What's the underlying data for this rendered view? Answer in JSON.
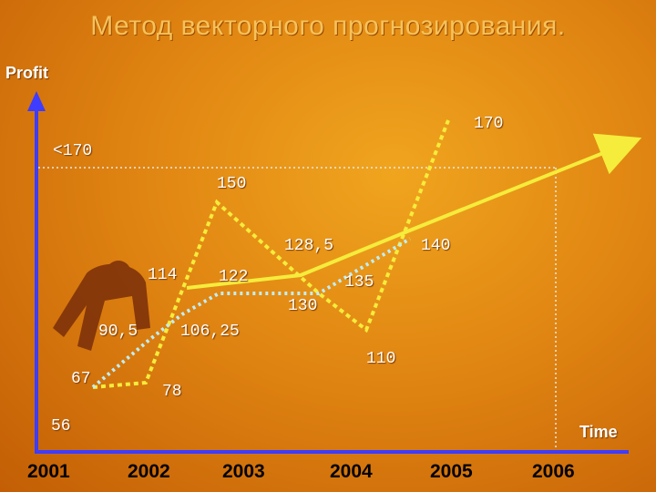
{
  "title": "Метод векторного прогнозирования.",
  "chart_data": {
    "type": "line",
    "ylabel": "Profit",
    "xlabel": "Time",
    "y_axis_label_value": "56",
    "threshold_label": "<170",
    "categories": [
      "2001",
      "2002",
      "2003",
      "2004",
      "2005",
      "2006"
    ],
    "series": [
      {
        "style": "yellow-dotted",
        "points": [
          {
            "x": 2001.5,
            "y": 67,
            "label": "67"
          },
          {
            "x": 2002.0,
            "y": 78,
            "label": "78"
          },
          {
            "x": 2002.6,
            "y": 150,
            "label": "150"
          },
          {
            "x": 2003.4,
            "y": 130,
            "label": "130"
          },
          {
            "x": 2004.1,
            "y": 110,
            "label": "110"
          },
          {
            "x": 2004.8,
            "y": 170,
            "label": "170"
          }
        ]
      },
      {
        "style": "cyan-dotted",
        "points": [
          {
            "x": 2001.5,
            "y": 67
          },
          {
            "x": 2001.8,
            "y": 90.5,
            "label": "90,5"
          },
          {
            "x": 2002.25,
            "y": 106.25,
            "label": "106,25"
          },
          {
            "x": 2002.6,
            "y": 122,
            "label": "122"
          },
          {
            "x": 2003.4,
            "y": 130
          },
          {
            "x": 2003.9,
            "y": 135,
            "label": "135"
          }
        ]
      },
      {
        "style": "yellow-solid-arrow",
        "points": [
          {
            "x": 2002.0,
            "y": 114,
            "label": "114"
          },
          {
            "x": 2003.0,
            "y": 128.5,
            "label": "128,5"
          },
          {
            "x": 2004.0,
            "y": 140,
            "label": "140"
          },
          {
            "x": 2005.8,
            "y": 172
          }
        ]
      }
    ]
  },
  "colors": {
    "yellow": "#f5ec3c",
    "cyan": "#bfeef4",
    "grid": "#e8e8e8",
    "axis": "#3e3cff"
  }
}
